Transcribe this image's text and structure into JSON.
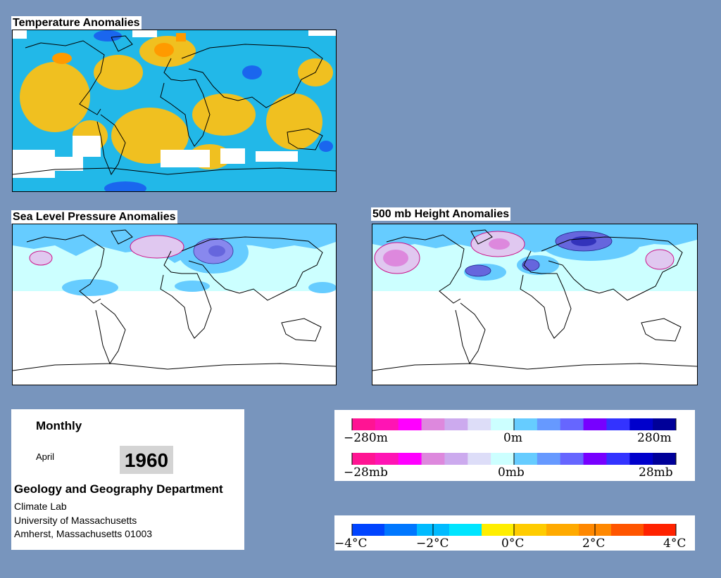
{
  "panels": {
    "temperature_title": "Temperature Anomalies",
    "slp_title": "Sea Level Pressure Anomalies",
    "height_title": "500 mb Height Anomalies"
  },
  "info": {
    "period": "Monthly",
    "month": "April",
    "year": "1960",
    "department": "Geology and Geography Department",
    "lab": "Climate Lab",
    "university": "University of Massachusetts",
    "address": "Amherst, Massachusetts 01003"
  },
  "legends": {
    "height": {
      "min": "−280m",
      "mid": "0m",
      "max": "280m"
    },
    "pressure": {
      "min": "−28mb",
      "mid": "0mb",
      "max": "28mb"
    },
    "temperature": {
      "ticks": [
        "−4°C",
        "−2°C",
        "0°C",
        "2°C",
        "4°C"
      ]
    }
  },
  "colors": {
    "background": "#7895bd",
    "anomaly_scale": [
      "#ff1493",
      "#ff14b4",
      "#ff00ff",
      "#dd88dd",
      "#ccaaee",
      "#ddddf8",
      "#ccffff",
      "#66ccff",
      "#6699ff",
      "#6666ff",
      "#7700ff",
      "#3333ff",
      "#0000cc",
      "#000099"
    ],
    "temperature_scale": [
      "#0044ff",
      "#0077ff",
      "#00bbff",
      "#00e5ff",
      "#ffee00",
      "#ffcc00",
      "#ffaa00",
      "#ff8800",
      "#ff5500",
      "#ff2200"
    ]
  }
}
